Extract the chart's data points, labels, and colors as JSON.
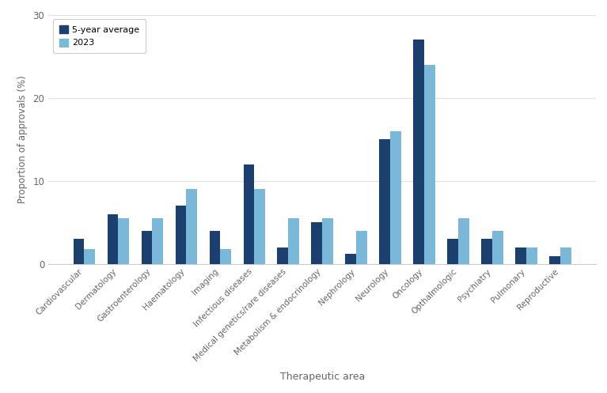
{
  "categories": [
    "Cardiovascular",
    "Dermatology",
    "Gastroenterology",
    "Haematology",
    "Imaging",
    "Infectious diseases",
    "Medical genetics/rare diseases",
    "Metabolism & endocrinology",
    "Nephrology",
    "Neurology",
    "Oncology",
    "Opthalmologic",
    "Psychiatry",
    "Pulmonary",
    "Reproductive"
  ],
  "five_year_avg": [
    3.0,
    6.0,
    4.0,
    7.0,
    4.0,
    12.0,
    2.0,
    5.0,
    1.2,
    15.0,
    27.0,
    3.0,
    3.0,
    2.0,
    1.0
  ],
  "year_2023": [
    1.8,
    5.5,
    5.5,
    9.0,
    1.8,
    9.0,
    5.5,
    5.5,
    4.0,
    16.0,
    24.0,
    5.5,
    4.0,
    2.0,
    2.0
  ],
  "color_dark": "#1b3f6e",
  "color_light": "#7ab8d9",
  "ylabel": "Proportion of approvals (%)",
  "xlabel": "Therapeutic area",
  "ylim": [
    0,
    30
  ],
  "yticks": [
    0,
    10,
    20,
    30
  ],
  "legend_labels": [
    "5-year average",
    "2023"
  ],
  "background_color": "#ffffff",
  "bar_width": 0.32
}
